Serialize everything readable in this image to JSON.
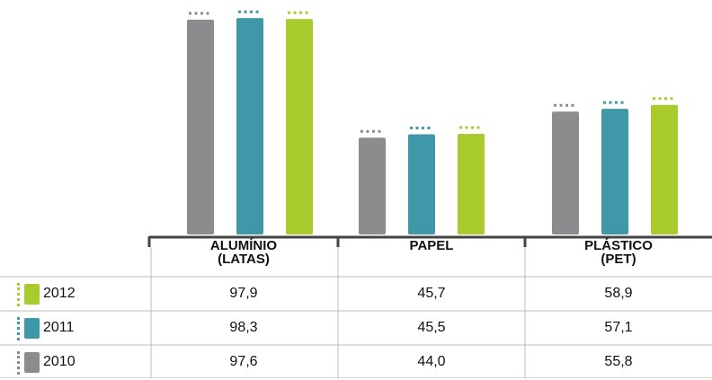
{
  "chart_data": {
    "type": "bar",
    "categories": [
      "ALUMÍNIO\n(LATAS)",
      "PAPEL",
      "PLÁSTICO\n(PET)"
    ],
    "series": [
      {
        "name": "2010",
        "color": "#8a8c8e",
        "values": [
          97.6,
          44.0,
          55.8
        ]
      },
      {
        "name": "2011",
        "color": "#3f98a8",
        "values": [
          98.3,
          45.5,
          57.1
        ]
      },
      {
        "name": "2012",
        "color": "#a9cb2e",
        "values": [
          97.9,
          45.7,
          58.9
        ]
      }
    ],
    "ylim": [
      0,
      100
    ]
  },
  "table": {
    "rows": [
      {
        "label": "2012",
        "color": "#a9cb2e",
        "values": [
          "97,9",
          "45,7",
          "58,9"
        ]
      },
      {
        "label": "2011",
        "color": "#3f98a8",
        "values": [
          "98,3",
          "45,5",
          "57,1"
        ]
      },
      {
        "label": "2010",
        "color": "#8a8c8e",
        "values": [
          "97,6",
          "44,0",
          "55,8"
        ]
      }
    ]
  }
}
